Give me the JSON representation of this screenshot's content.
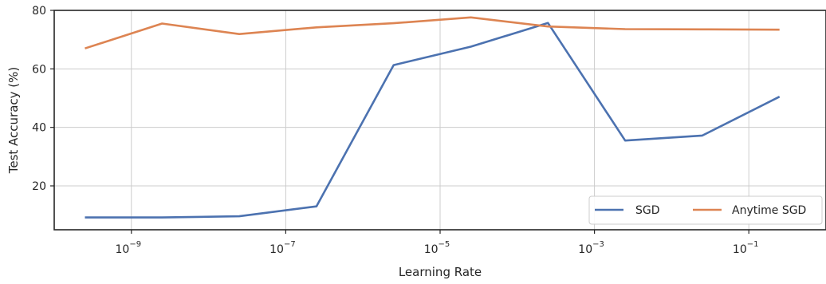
{
  "chart_data": {
    "type": "line",
    "xlabel": "Learning Rate",
    "ylabel": "Test Accuracy (%)",
    "xscale": "log",
    "xlim": [
      1e-10,
      1
    ],
    "ylim": [
      5,
      80
    ],
    "x_ticks": [
      1e-09,
      1e-07,
      1e-05,
      0.001,
      0.1
    ],
    "x_tick_base": "10",
    "x_tick_exponents": [
      "−9",
      "−7",
      "−5",
      "−3",
      "−1"
    ],
    "y_ticks": [
      20,
      40,
      60,
      80
    ],
    "y_tick_labels": [
      "20",
      "40",
      "60",
      "80"
    ],
    "grid": true,
    "legend_position": "bottom-right",
    "x": [
      2.5e-10,
      2.5e-09,
      2.5e-08,
      2.5e-07,
      2.5e-06,
      2.5e-05,
      0.00025,
      0.0025,
      0.025,
      0.25
    ],
    "series": [
      {
        "name": "SGD",
        "color": "#4c72b0",
        "values": [
          9.2,
          9.2,
          9.6,
          13.0,
          61.3,
          67.6,
          75.7,
          35.5,
          37.2,
          50.5
        ]
      },
      {
        "name": "Anytime SGD",
        "color": "#dd8452",
        "values": [
          67.0,
          75.5,
          71.9,
          74.2,
          75.6,
          77.6,
          74.5,
          73.6,
          73.5,
          73.4
        ]
      }
    ]
  }
}
